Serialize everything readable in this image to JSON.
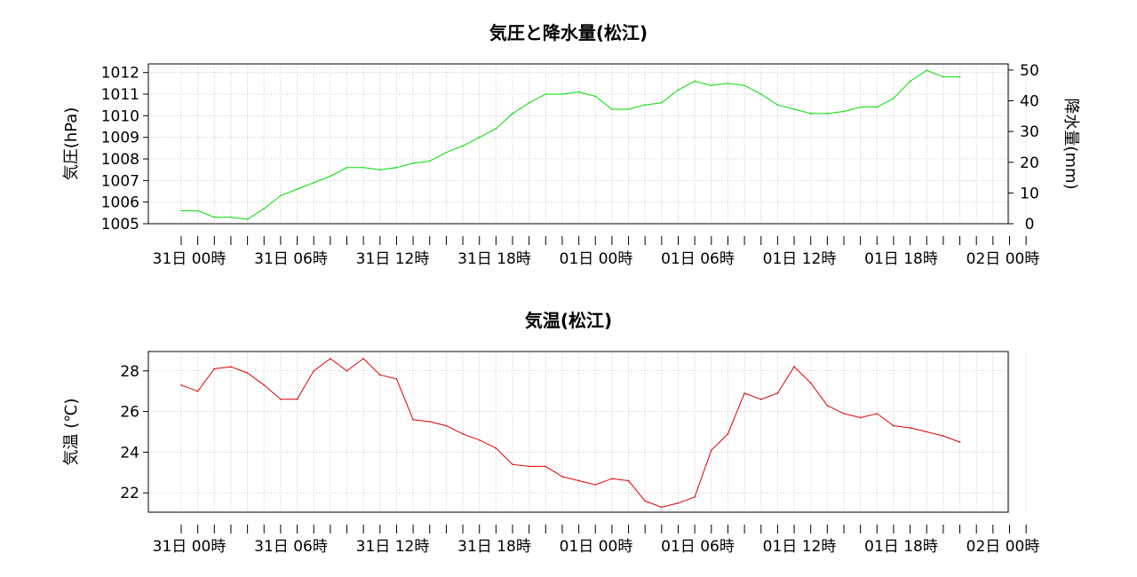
{
  "chart_data": [
    {
      "type": "line",
      "title": "気圧と降水量(松江)",
      "ylabel": "気圧(hPa)",
      "y2label": "降水量(mm)",
      "ylim": [
        1005,
        1012.4
      ],
      "y2lim": [
        0,
        52
      ],
      "yticks": [
        "1005",
        "1006",
        "1007",
        "1008",
        "1009",
        "1010",
        "1011",
        "1012"
      ],
      "y2ticks": [
        "0",
        "10",
        "20",
        "30",
        "40",
        "50"
      ],
      "xticklabels": [
        "31日 00時",
        "31日 06時",
        "31日 12時",
        "31日 18時",
        "01日 00時",
        "01日 06時",
        "01日 12時",
        "01日 18時",
        "02日 00時"
      ],
      "grid": true,
      "color": "#00dd00",
      "series": [
        {
          "values": [
            1005.6,
            1005.6,
            1005.3,
            1005.3,
            1005.2,
            1005.7,
            1006.3,
            1006.6,
            1006.9,
            1007.2,
            1007.6,
            1007.6,
            1007.5,
            1007.6,
            1007.8,
            1007.9,
            1008.3,
            1008.6,
            1009.0,
            1009.4,
            1010.1,
            1010.6,
            1011.0,
            1011.0,
            1011.1,
            1010.9,
            1010.3,
            1010.3,
            1010.5,
            1010.6,
            1011.2,
            1011.6,
            1011.4,
            1011.5,
            1011.4,
            1011.0,
            1010.5,
            1010.3,
            1010.1,
            1010.1,
            1010.2,
            1010.4,
            1010.4,
            1010.8,
            1011.6,
            1012.1,
            1011.8,
            1011.8
          ]
        }
      ]
    },
    {
      "type": "line",
      "title": "気温(松江)",
      "ylabel": "気温 (℃)",
      "ylim": [
        21.05,
        28.95
      ],
      "yticks": [
        "22",
        "24",
        "26",
        "28"
      ],
      "xticklabels": [
        "31日 00時",
        "31日 06時",
        "31日 12時",
        "31日 18時",
        "01日 00時",
        "01日 06時",
        "01日 12時",
        "01日 18時",
        "02日 00時"
      ],
      "grid": true,
      "color": "#dd0000",
      "series": [
        {
          "values": [
            27.3,
            27.0,
            28.1,
            28.2,
            27.9,
            27.3,
            26.6,
            26.6,
            28.0,
            28.6,
            28.0,
            28.6,
            27.8,
            27.6,
            25.6,
            25.5,
            25.3,
            24.9,
            24.6,
            24.2,
            23.4,
            23.3,
            23.3,
            22.8,
            22.6,
            22.4,
            22.7,
            22.6,
            21.6,
            21.3,
            21.5,
            21.8,
            24.1,
            24.9,
            26.9,
            26.6,
            26.9,
            28.2,
            27.4,
            26.3,
            25.9,
            25.7,
            25.9,
            25.3,
            25.2,
            25.0,
            24.8,
            24.5
          ]
        }
      ]
    }
  ]
}
